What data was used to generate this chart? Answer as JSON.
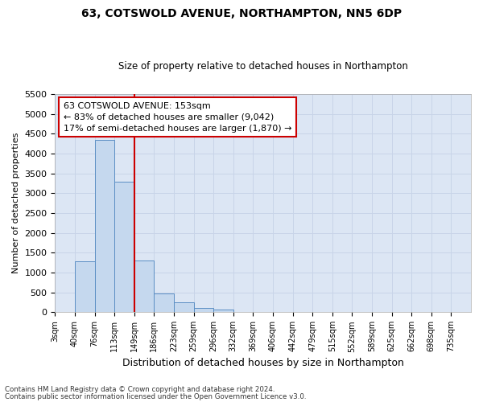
{
  "title1": "63, COTSWOLD AVENUE, NORTHAMPTON, NN5 6DP",
  "title2": "Size of property relative to detached houses in Northampton",
  "xlabel": "Distribution of detached houses by size in Northampton",
  "ylabel": "Number of detached properties",
  "footer1": "Contains HM Land Registry data © Crown copyright and database right 2024.",
  "footer2": "Contains public sector information licensed under the Open Government Licence v3.0.",
  "annotation_line1": "63 COTSWOLD AVENUE: 153sqm",
  "annotation_line2": "← 83% of detached houses are smaller (9,042)",
  "annotation_line3": "17% of semi-detached houses are larger (1,870) →",
  "bar_color": "#c5d8ee",
  "bar_edge_color": "#5b8ec4",
  "vertical_line_color": "#cc0000",
  "annotation_box_color": "#cc0000",
  "grid_color": "#c8d4e8",
  "bg_color": "#dce6f4",
  "categories": [
    "3sqm",
    "40sqm",
    "76sqm",
    "113sqm",
    "149sqm",
    "186sqm",
    "223sqm",
    "259sqm",
    "296sqm",
    "332sqm",
    "369sqm",
    "406sqm",
    "442sqm",
    "479sqm",
    "515sqm",
    "552sqm",
    "589sqm",
    "625sqm",
    "662sqm",
    "698sqm",
    "735sqm"
  ],
  "values": [
    0,
    1280,
    4340,
    3300,
    1300,
    480,
    240,
    100,
    60,
    0,
    0,
    0,
    0,
    0,
    0,
    0,
    0,
    0,
    0,
    0,
    0
  ],
  "ylim": [
    0,
    5500
  ],
  "yticks": [
    0,
    500,
    1000,
    1500,
    2000,
    2500,
    3000,
    3500,
    4000,
    4500,
    5000,
    5500
  ],
  "vline_bin_index": 4,
  "n_bins": 21
}
